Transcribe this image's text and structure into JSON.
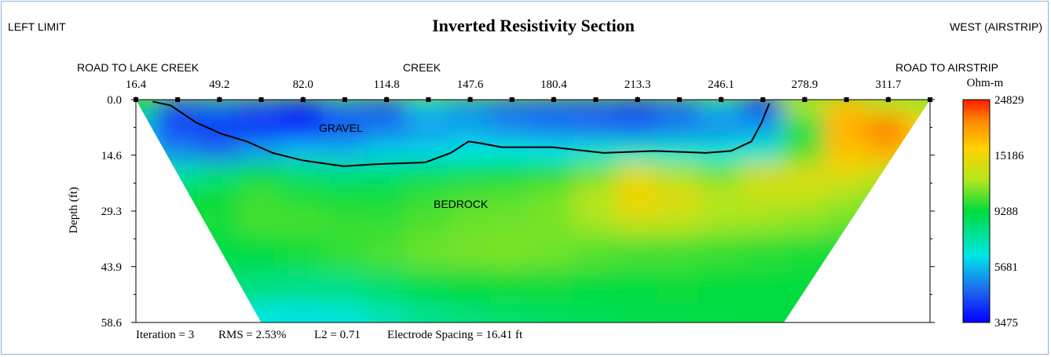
{
  "header": {
    "left": "LEFT LIMIT",
    "title": "Inverted Resistivity Section",
    "right": "WEST (AIRSTRIP)"
  },
  "annotations": {
    "road_left": "ROAD TO LAKE CREEK",
    "creek": "CREEK",
    "road_right": "ROAD TO AIRSTRIP",
    "gravel": "GRAVEL",
    "bedrock": "BEDROCK"
  },
  "footer": {
    "iteration": "Iteration = 3",
    "rms": "RMS = 2.53%",
    "l2": "L2 = 0.71",
    "spacing": "Electrode Spacing = 16.41 ft"
  },
  "colors": {
    "frame_border": "#8eb1d8",
    "contour_line": "#000000",
    "scale": [
      "#0000ff",
      "#1e64f0",
      "#00e6e6",
      "#00dc3c",
      "#b4e61e",
      "#ffd200",
      "#ff8c00",
      "#ff1e00"
    ]
  },
  "chart_data": {
    "type": "heatmap",
    "title": "Inverted Resistivity Section",
    "xlabel": "",
    "ylabel": "Depth (ft)",
    "x_ticks": [
      16.4,
      49.2,
      82.0,
      114.8,
      147.6,
      180.4,
      213.3,
      246.1,
      278.9,
      311.7
    ],
    "y_ticks": [
      0.0,
      14.6,
      29.3,
      43.9,
      58.6
    ],
    "xlim": [
      16.4,
      328.1
    ],
    "ylim": [
      0.0,
      58.6
    ],
    "electrodes_x": [
      16.4,
      32.8,
      49.2,
      65.6,
      82.0,
      98.4,
      114.8,
      131.2,
      147.6,
      164.0,
      180.4,
      196.9,
      213.3,
      229.7,
      246.1,
      262.5,
      278.9,
      295.3,
      311.7,
      328.1
    ],
    "colorbar": {
      "unit": "Ohm-m",
      "labels": [
        24829,
        15186,
        9288,
        5681,
        3475
      ]
    },
    "section_bottom_x": [
      65.6,
      270.7
    ],
    "resistivity_cells": {
      "depths": [
        2,
        8,
        14,
        20,
        26,
        32,
        40,
        50,
        58
      ],
      "x": [
        16.4,
        32.8,
        49.2,
        65.6,
        82.0,
        98.4,
        114.8,
        131.2,
        147.6,
        164.0,
        180.4,
        196.9,
        213.3,
        229.7,
        246.1,
        262.5,
        278.9,
        295.3,
        311.7,
        328.1
      ],
      "rows": [
        [
          9288,
          4500,
          4800,
          4400,
          4100,
          4900,
          4500,
          5800,
          5200,
          4700,
          4600,
          4500,
          4300,
          4700,
          5600,
          3700,
          12000,
          17000,
          14000,
          12000
        ],
        [
          5681,
          4200,
          4000,
          3900,
          3700,
          4300,
          4800,
          5200,
          5300,
          5000,
          4800,
          4700,
          4600,
          4900,
          5000,
          5400,
          9000,
          18000,
          21000,
          16000
        ],
        [
          5681,
          5000,
          4700,
          5300,
          5700,
          5600,
          5900,
          6000,
          6300,
          6400,
          6200,
          6600,
          6800,
          6700,
          6500,
          6700,
          10500,
          17000,
          18000,
          15000
        ],
        [
          8000,
          7200,
          8000,
          9000,
          8300,
          8000,
          8200,
          8600,
          8900,
          9300,
          9800,
          11000,
          14000,
          12000,
          11000,
          13500,
          14000,
          14500,
          13000,
          12000
        ],
        [
          9288,
          9000,
          9400,
          10200,
          9700,
          9400,
          9500,
          10000,
          10400,
          10600,
          11000,
          12500,
          15500,
          14500,
          12600,
          13000,
          13000,
          12000,
          11000,
          10000
        ],
        [
          9288,
          9300,
          9600,
          10300,
          10300,
          10100,
          10000,
          10500,
          10900,
          11000,
          11200,
          12000,
          13200,
          12800,
          12000,
          11800,
          11500,
          11000,
          10000,
          9500
        ],
        [
          9288,
          9000,
          9000,
          9200,
          9600,
          10000,
          10400,
          10900,
          11100,
          11200,
          11000,
          10600,
          10400,
          10300,
          10100,
          9900,
          9700,
          9500,
          9300,
          9300
        ],
        [
          9000,
          8500,
          8200,
          8000,
          7800,
          7900,
          8400,
          8900,
          9300,
          9500,
          9400,
          9200,
          9300,
          9400,
          9300,
          9300,
          9300,
          9300,
          9300,
          9300
        ],
        [
          7000,
          6800,
          6500,
          6300,
          6200,
          6400,
          7000,
          7600,
          8000,
          8300,
          8500,
          8700,
          8900,
          9000,
          9100,
          9200,
          9200,
          9200,
          9200,
          9200
        ]
      ]
    },
    "interface_line": {
      "x": [
        23,
        30,
        40,
        50,
        60,
        70,
        82,
        98,
        110,
        130,
        140,
        147,
        152,
        160,
        180,
        200,
        220,
        240,
        250,
        258,
        262,
        265
      ],
      "depth": [
        0.5,
        1.5,
        6,
        9,
        11,
        14,
        16,
        17.5,
        17,
        16.5,
        14,
        11,
        11.5,
        12.5,
        12.5,
        14,
        13.5,
        14,
        13.5,
        11,
        6,
        1
      ]
    }
  }
}
